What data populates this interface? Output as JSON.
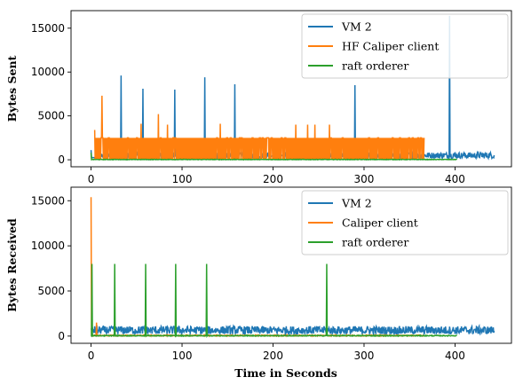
{
  "chart_data": [
    {
      "type": "line",
      "ylabel": "Bytes Sent",
      "xlabel": "",
      "xlim": [
        -22,
        462
      ],
      "ylim": [
        -800,
        17000
      ],
      "xticks": [
        0,
        100,
        200,
        300,
        400
      ],
      "yticks": [
        0,
        5000,
        10000,
        15000
      ],
      "legend": "top-right",
      "series": [
        {
          "name": "VM 2",
          "color": "#1f77b4",
          "baseline": 500,
          "x_range": [
            0,
            443
          ],
          "spikes": [
            [
              0,
              1100
            ],
            [
              33,
              9600
            ],
            [
              57,
              8100
            ],
            [
              92,
              8000
            ],
            [
              125,
              9400
            ],
            [
              158,
              8600
            ],
            [
              290,
              8500
            ],
            [
              324,
              1500
            ],
            [
              394,
              16400
            ]
          ]
        },
        {
          "name": "HF Caliper client",
          "color": "#ff7f0e",
          "baseline": 1800,
          "x_range": [
            4,
            366
          ],
          "spikes": [
            [
              4,
              3400
            ],
            [
              12,
              7300
            ],
            [
              55,
              4100
            ],
            [
              74,
              5200
            ],
            [
              84,
              4000
            ],
            [
              142,
              4100
            ],
            [
              225,
              4000
            ],
            [
              238,
              4000
            ],
            [
              246,
              4000
            ],
            [
              262,
              4000
            ]
          ]
        },
        {
          "name": "raft orderer",
          "color": "#2ca02c",
          "baseline": 100,
          "x_range": [
            0,
            402
          ],
          "spikes": [
            [
              0,
              800
            ]
          ]
        }
      ]
    },
    {
      "type": "line",
      "ylabel": "Bytes Received",
      "xlabel": "Time in Seconds",
      "xlim": [
        -22,
        462
      ],
      "ylim": [
        -800,
        16500
      ],
      "xticks": [
        0,
        100,
        200,
        300,
        400
      ],
      "yticks": [
        0,
        5000,
        10000,
        15000
      ],
      "legend": "top-right",
      "series": [
        {
          "name": "VM 2",
          "color": "#1f77b4",
          "baseline": 650,
          "x_range": [
            0,
            443
          ],
          "spikes": []
        },
        {
          "name": " Caliper client",
          "color": "#ff7f0e",
          "baseline": 200,
          "x_range": [
            0,
            366
          ],
          "spikes": [
            [
              0,
              15400
            ],
            [
              6,
              1500
            ]
          ]
        },
        {
          "name": " raft orderer",
          "color": "#2ca02c",
          "baseline": 150,
          "x_range": [
            0,
            402
          ],
          "spikes": [
            [
              1,
              8000
            ],
            [
              26,
              8000
            ],
            [
              60,
              8000
            ],
            [
              93,
              8000
            ],
            [
              127,
              8000
            ],
            [
              259,
              8000
            ]
          ]
        }
      ]
    }
  ]
}
